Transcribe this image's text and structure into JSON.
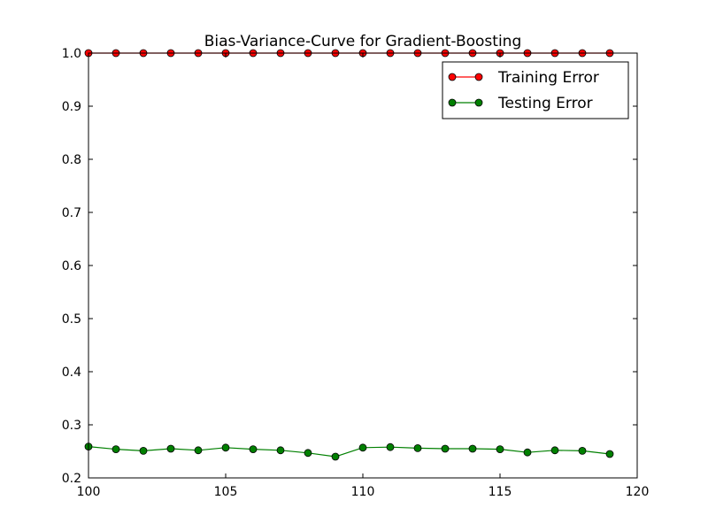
{
  "chart_data": {
    "type": "line",
    "title": "Bias-Variance-Curve for Gradient-Boosting",
    "xlabel": "",
    "ylabel": "",
    "xlim": [
      100,
      120
    ],
    "ylim": [
      0.2,
      1.0
    ],
    "xticks": [
      "100",
      "105",
      "110",
      "115",
      "120"
    ],
    "yticks": [
      "0.2",
      "0.3",
      "0.4",
      "0.5",
      "0.6",
      "0.7",
      "0.8",
      "0.9",
      "1.0"
    ],
    "grid": false,
    "legend_position": "top-right",
    "x": [
      100,
      101,
      102,
      103,
      104,
      105,
      106,
      107,
      108,
      109,
      110,
      111,
      112,
      113,
      114,
      115,
      116,
      117,
      118,
      119
    ],
    "series": [
      {
        "name": "Training Error",
        "color": "#ff0000",
        "values": [
          1.0,
          1.0,
          1.0,
          1.0,
          1.0,
          1.0,
          1.0,
          1.0,
          1.0,
          1.0,
          1.0,
          1.0,
          1.0,
          1.0,
          1.0,
          1.0,
          1.0,
          1.0,
          1.0,
          1.0
        ]
      },
      {
        "name": "Testing Error",
        "color": "#008000",
        "values": [
          0.259,
          0.254,
          0.251,
          0.255,
          0.252,
          0.257,
          0.254,
          0.252,
          0.247,
          0.24,
          0.257,
          0.258,
          0.256,
          0.255,
          0.255,
          0.254,
          0.248,
          0.252,
          0.251,
          0.245
        ]
      }
    ]
  }
}
